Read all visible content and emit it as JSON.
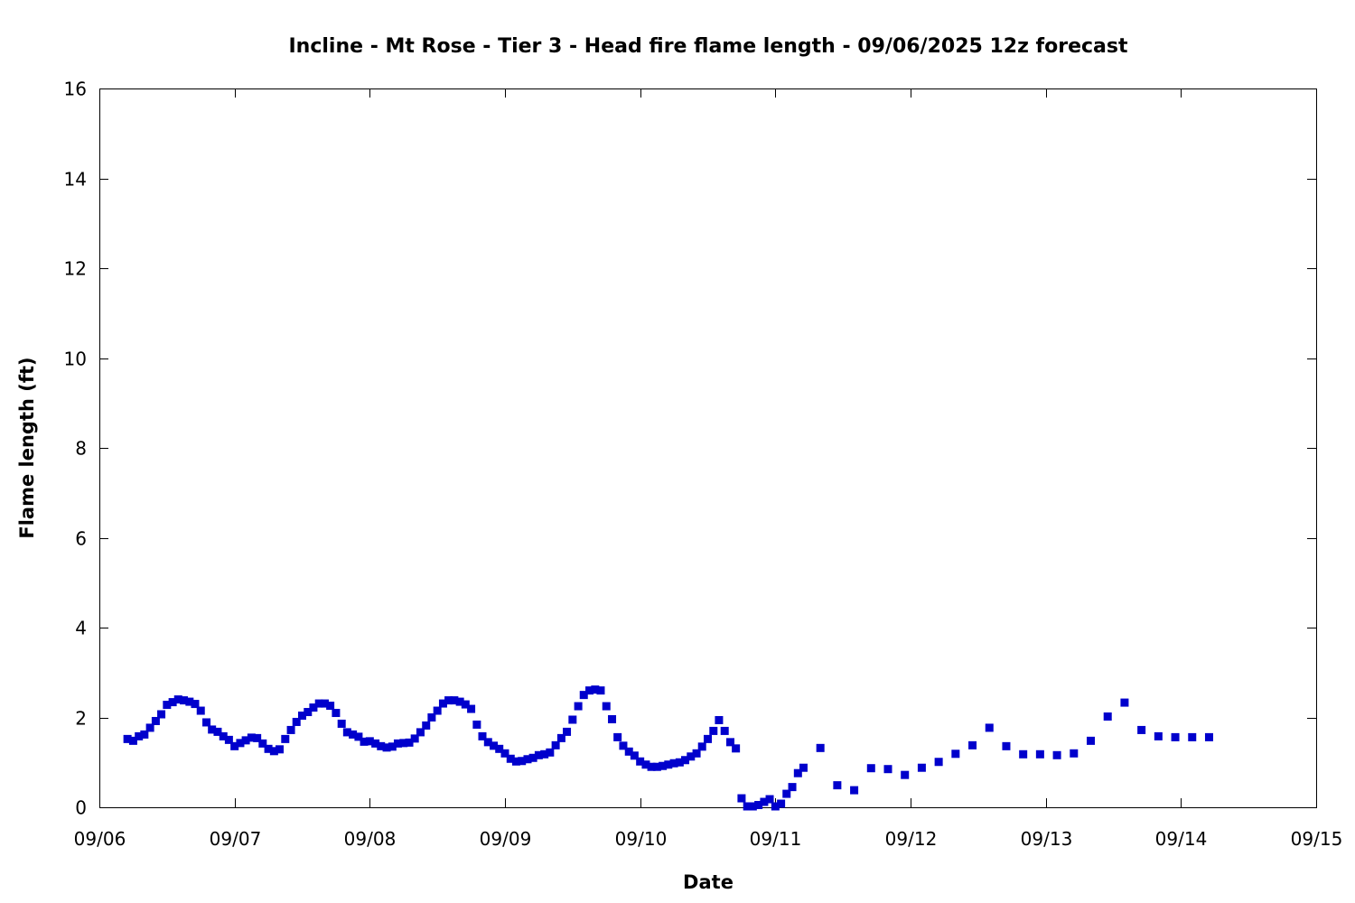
{
  "chart_data": {
    "type": "scatter",
    "title": "Incline - Mt Rose - Tier 3 - Head fire flame length - 09/06/2025 12z forecast",
    "xlabel": "Date",
    "ylabel": "Flame length (ft)",
    "x_ticks": [
      "09/06",
      "09/07",
      "09/08",
      "09/09",
      "09/10",
      "09/11",
      "09/12",
      "09/13",
      "09/14",
      "09/15"
    ],
    "x_unit": "days since 09/06",
    "xlim": [
      0,
      9
    ],
    "ylim": [
      0,
      16
    ],
    "y_ticks": [
      0,
      2,
      4,
      6,
      8,
      10,
      12,
      14,
      16
    ],
    "grid": false,
    "marker_color": "#0000cc",
    "series": [
      {
        "name": "",
        "points": [
          [
            0.208,
            1.52
          ],
          [
            0.25,
            1.48
          ],
          [
            0.292,
            1.58
          ],
          [
            0.333,
            1.62
          ],
          [
            0.375,
            1.77
          ],
          [
            0.417,
            1.92
          ],
          [
            0.458,
            2.07
          ],
          [
            0.5,
            2.28
          ],
          [
            0.542,
            2.34
          ],
          [
            0.583,
            2.4
          ],
          [
            0.625,
            2.38
          ],
          [
            0.667,
            2.35
          ],
          [
            0.708,
            2.3
          ],
          [
            0.75,
            2.15
          ],
          [
            0.792,
            1.89
          ],
          [
            0.833,
            1.73
          ],
          [
            0.875,
            1.68
          ],
          [
            0.917,
            1.58
          ],
          [
            0.958,
            1.5
          ],
          [
            1.0,
            1.36
          ],
          [
            1.042,
            1.43
          ],
          [
            1.083,
            1.49
          ],
          [
            1.125,
            1.55
          ],
          [
            1.167,
            1.54
          ],
          [
            1.208,
            1.42
          ],
          [
            1.25,
            1.3
          ],
          [
            1.292,
            1.25
          ],
          [
            1.333,
            1.29
          ],
          [
            1.375,
            1.52
          ],
          [
            1.417,
            1.72
          ],
          [
            1.458,
            1.9
          ],
          [
            1.5,
            2.04
          ],
          [
            1.542,
            2.12
          ],
          [
            1.583,
            2.22
          ],
          [
            1.625,
            2.31
          ],
          [
            1.667,
            2.31
          ],
          [
            1.708,
            2.26
          ],
          [
            1.75,
            2.1
          ],
          [
            1.792,
            1.86
          ],
          [
            1.833,
            1.67
          ],
          [
            1.875,
            1.62
          ],
          [
            1.917,
            1.57
          ],
          [
            1.958,
            1.46
          ],
          [
            2.0,
            1.47
          ],
          [
            2.042,
            1.42
          ],
          [
            2.083,
            1.36
          ],
          [
            2.125,
            1.33
          ],
          [
            2.167,
            1.35
          ],
          [
            2.208,
            1.42
          ],
          [
            2.25,
            1.43
          ],
          [
            2.292,
            1.44
          ],
          [
            2.333,
            1.53
          ],
          [
            2.375,
            1.67
          ],
          [
            2.417,
            1.82
          ],
          [
            2.458,
            2.0
          ],
          [
            2.5,
            2.15
          ],
          [
            2.542,
            2.31
          ],
          [
            2.583,
            2.38
          ],
          [
            2.625,
            2.38
          ],
          [
            2.667,
            2.35
          ],
          [
            2.708,
            2.29
          ],
          [
            2.75,
            2.19
          ],
          [
            2.792,
            1.84
          ],
          [
            2.833,
            1.58
          ],
          [
            2.875,
            1.45
          ],
          [
            2.917,
            1.37
          ],
          [
            2.958,
            1.3
          ],
          [
            3.0,
            1.2
          ],
          [
            3.042,
            1.08
          ],
          [
            3.083,
            1.02
          ],
          [
            3.125,
            1.03
          ],
          [
            3.167,
            1.07
          ],
          [
            3.208,
            1.1
          ],
          [
            3.25,
            1.16
          ],
          [
            3.292,
            1.18
          ],
          [
            3.333,
            1.22
          ],
          [
            3.375,
            1.38
          ],
          [
            3.417,
            1.54
          ],
          [
            3.458,
            1.68
          ],
          [
            3.5,
            1.95
          ],
          [
            3.542,
            2.25
          ],
          [
            3.583,
            2.5
          ],
          [
            3.625,
            2.6
          ],
          [
            3.667,
            2.62
          ],
          [
            3.708,
            2.6
          ],
          [
            3.75,
            2.25
          ],
          [
            3.792,
            1.96
          ],
          [
            3.833,
            1.56
          ],
          [
            3.875,
            1.37
          ],
          [
            3.917,
            1.24
          ],
          [
            3.958,
            1.15
          ],
          [
            4.0,
            1.02
          ],
          [
            4.042,
            0.95
          ],
          [
            4.083,
            0.9
          ],
          [
            4.125,
            0.9
          ],
          [
            4.167,
            0.92
          ],
          [
            4.208,
            0.95
          ],
          [
            4.25,
            0.98
          ],
          [
            4.292,
            1.0
          ],
          [
            4.333,
            1.05
          ],
          [
            4.375,
            1.13
          ],
          [
            4.417,
            1.2
          ],
          [
            4.458,
            1.35
          ],
          [
            4.5,
            1.52
          ],
          [
            4.542,
            1.7
          ],
          [
            4.583,
            1.94
          ],
          [
            4.625,
            1.7
          ],
          [
            4.667,
            1.45
          ],
          [
            4.708,
            1.31
          ],
          [
            4.75,
            0.2
          ],
          [
            4.792,
            0.02
          ],
          [
            4.833,
            0.02
          ],
          [
            4.875,
            0.05
          ],
          [
            4.917,
            0.12
          ],
          [
            4.958,
            0.18
          ],
          [
            5.0,
            0.02
          ],
          [
            5.042,
            0.08
          ],
          [
            5.083,
            0.3
          ],
          [
            5.125,
            0.45
          ],
          [
            5.167,
            0.76
          ],
          [
            5.208,
            0.88
          ],
          [
            5.333,
            1.32
          ],
          [
            5.458,
            0.49
          ],
          [
            5.583,
            0.38
          ],
          [
            5.708,
            0.87
          ],
          [
            5.833,
            0.85
          ],
          [
            5.958,
            0.72
          ],
          [
            6.083,
            0.88
          ],
          [
            6.208,
            1.01
          ],
          [
            6.333,
            1.19
          ],
          [
            6.458,
            1.38
          ],
          [
            6.583,
            1.77
          ],
          [
            6.708,
            1.36
          ],
          [
            6.833,
            1.18
          ],
          [
            6.958,
            1.18
          ],
          [
            7.083,
            1.16
          ],
          [
            7.208,
            1.2
          ],
          [
            7.333,
            1.48
          ],
          [
            7.458,
            2.02
          ],
          [
            7.583,
            2.33
          ],
          [
            7.708,
            1.72
          ],
          [
            7.833,
            1.58
          ],
          [
            7.958,
            1.56
          ],
          [
            8.083,
            1.56
          ],
          [
            8.208,
            1.56
          ]
        ]
      }
    ]
  }
}
